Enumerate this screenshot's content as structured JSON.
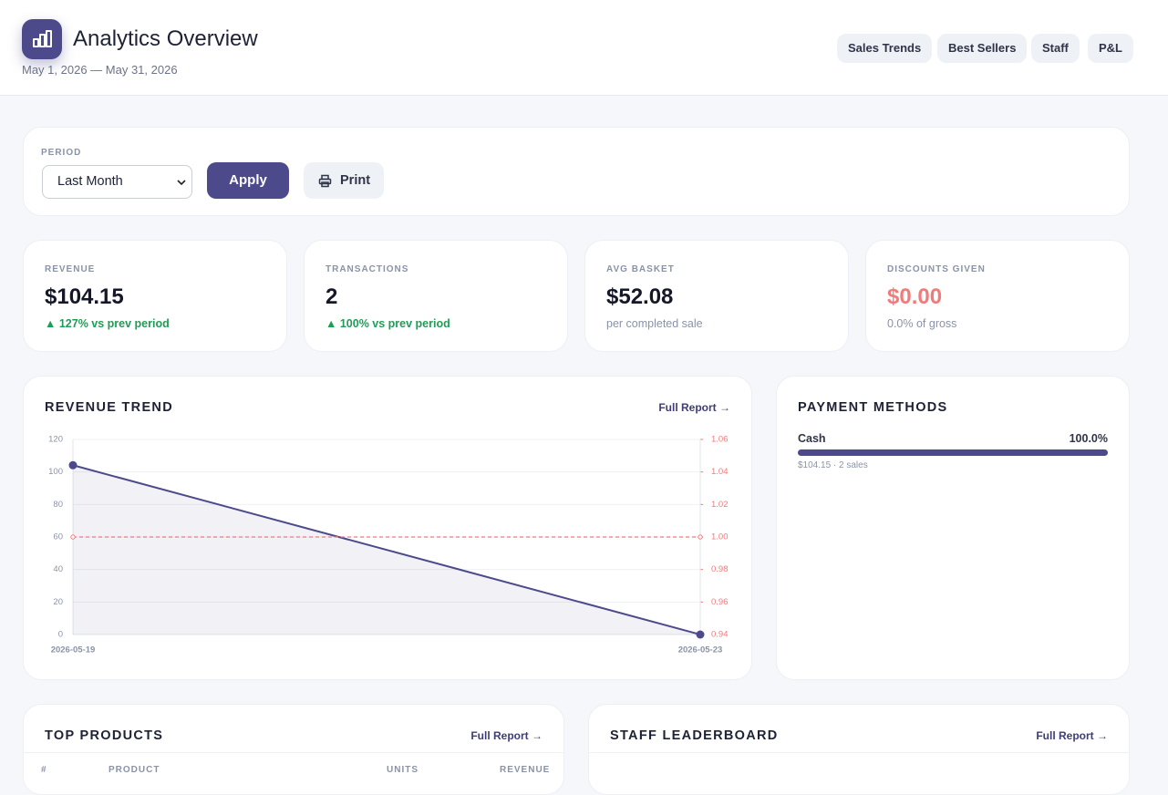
{
  "header": {
    "title": "Analytics Overview",
    "date_range": "May 1, 2026 — May 31, 2026",
    "nav": [
      "Sales Trends",
      "Best Sellers",
      "Staff",
      "P&L"
    ]
  },
  "filters": {
    "period_label": "PERIOD",
    "period_value": "Last Month",
    "apply": "Apply",
    "print": "Print"
  },
  "kpis": [
    {
      "label": "REVENUE",
      "value": "$104.15",
      "note": "▲ 127% vs prev period"
    },
    {
      "label": "TRANSACTIONS",
      "value": "2",
      "note": "▲ 100% vs prev period"
    },
    {
      "label": "AVG BASKET",
      "value": "$52.08",
      "note": "per completed sale"
    },
    {
      "label": "DISCOUNTS GIVEN",
      "value": "$0.00",
      "note": "0.0% of gross"
    }
  ],
  "revenue_trend": {
    "title": "REVENUE TREND",
    "link": "Full Report →",
    "chart_data": {
      "type": "line",
      "x": [
        "2026-05-19",
        "2026-05-23"
      ],
      "series": [
        {
          "color": "#4c4a8a",
          "values": [
            104.15,
            0
          ]
        },
        {
          "color": "#f07b7b",
          "values": [
            1,
            1
          ],
          "axis": "y2"
        }
      ],
      "ylim": [
        0,
        120
      ],
      "yticks": [
        0,
        20,
        40,
        60,
        80,
        100,
        120
      ],
      "y2lim": [
        0.94,
        1.06
      ],
      "y2ticks": [
        0.94,
        0.96,
        0.98,
        {
          "value": 1,
          "label": "1.00"
        },
        1.02,
        1.04,
        1.06
      ],
      "grid": true
    }
  },
  "payment_methods": {
    "title": "PAYMENT METHODS",
    "items": [
      {
        "name": "Cash",
        "percent_label": "100.0%",
        "percent": 100,
        "detail": "$104.15 · 2 sales"
      }
    ]
  },
  "top_products": {
    "title": "TOP PRODUCTS",
    "link": "Full Report →",
    "columns": [
      "#",
      "PRODUCT",
      "UNITS",
      "REVENUE"
    ]
  },
  "staff_leaderboard": {
    "title": "STAFF LEADERBOARD",
    "link": "Full Report →"
  }
}
